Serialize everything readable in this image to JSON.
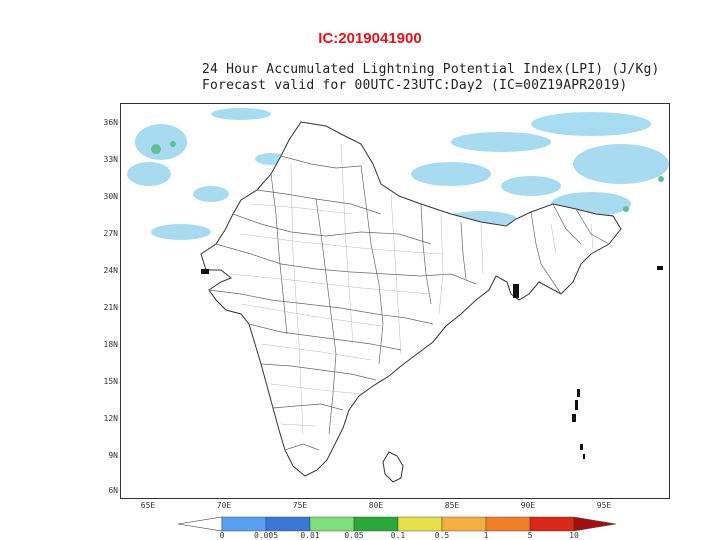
{
  "header": {
    "ic_label": "IC:2019041900",
    "title_line1": "24 Hour Accumulated Lightning Potential Index(LPI) (J/Kg)",
    "title_line2": "Forecast valid for 00UTC-23UTC:Day2 (IC=00Z19APR2019)"
  },
  "axes": {
    "lat_ticks": [
      "36N",
      "33N",
      "30N",
      "27N",
      "24N",
      "21N",
      "18N",
      "15N",
      "12N",
      "9N",
      "6N"
    ],
    "lon_ticks": [
      "65E",
      "70E",
      "75E",
      "80E",
      "85E",
      "90E",
      "95E"
    ]
  },
  "colorbar": {
    "labels": [
      "0",
      "0.005",
      "0.01",
      "0.05",
      "0.1",
      "0.5",
      "1",
      "5",
      "10"
    ],
    "colors": [
      "#5aa0f0",
      "#3a78d8",
      "#7ee07a",
      "#2aa83a",
      "#e8e04a",
      "#f2b040",
      "#f08028",
      "#d82818",
      "#a01010"
    ]
  },
  "colors": {
    "ic_label": "#e0141b",
    "boundary": "#555555",
    "lpi_low": "#9fd8ee",
    "lpi_mid": "#5fc0a0"
  }
}
